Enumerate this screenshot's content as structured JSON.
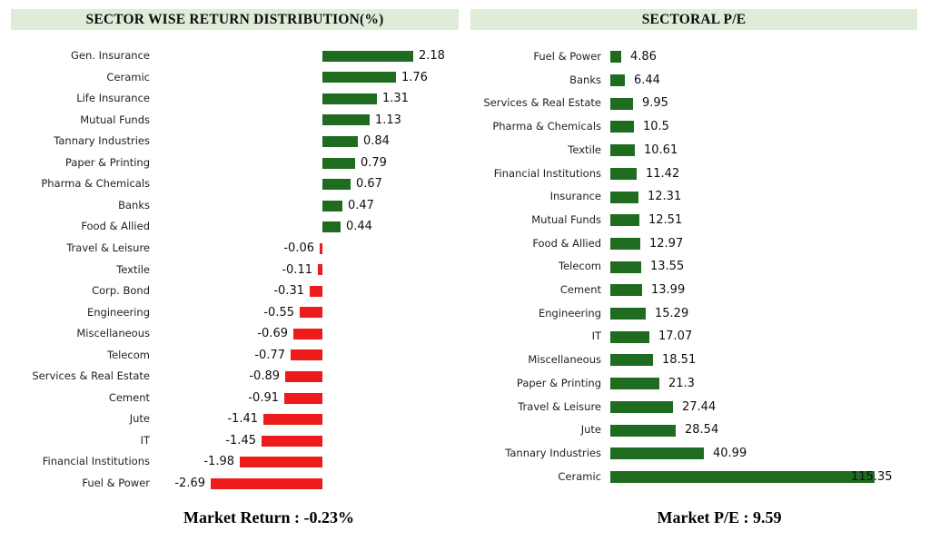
{
  "chart_data": [
    {
      "type": "bar",
      "orientation": "horizontal",
      "title": "SECTOR WISE RETURN DISTRIBUTION(%)",
      "footer": "Market Return : -0.23%",
      "header_bg": "#dfedd8",
      "positive_color": "#1f6b1f",
      "negative_color": "#ee1b1b",
      "value_labels": true,
      "grid": false,
      "legend": "none",
      "xlim": [
        -3,
        2.6
      ],
      "categories": [
        "Gen. Insurance",
        "Ceramic",
        "Life Insurance",
        "Mutual Funds",
        "Tannary Industries",
        "Paper & Printing",
        "Pharma & Chemicals",
        "Banks",
        "Food & Allied",
        "Travel & Leisure",
        "Textile",
        "Corp. Bond",
        "Engineering",
        "Miscellaneous",
        "Telecom",
        "Services & Real Estate",
        "Cement",
        "Jute",
        "IT",
        "Financial Institutions",
        "Fuel & Power"
      ],
      "values": [
        2.18,
        1.76,
        1.31,
        1.13,
        0.84,
        0.79,
        0.67,
        0.47,
        0.44,
        -0.06,
        -0.11,
        -0.31,
        -0.55,
        -0.69,
        -0.77,
        -0.89,
        -0.91,
        -1.41,
        -1.45,
        -1.98,
        -2.69
      ]
    },
    {
      "type": "bar",
      "orientation": "horizontal",
      "title": "SECTORAL P/E",
      "footer": "Market P/E : 9.59",
      "header_bg": "#dfedd8",
      "positive_color": "#1f6b1f",
      "negative_color": "#ee1b1b",
      "value_labels": true,
      "grid": false,
      "legend": "none",
      "xlim": [
        0,
        124
      ],
      "categories": [
        "Fuel & Power",
        "Banks",
        "Services & Real Estate",
        "Pharma & Chemicals",
        "Textile",
        "Financial Institutions",
        "Insurance",
        "Mutual Funds",
        "Food & Allied",
        "Telecom",
        "Cement",
        "Engineering",
        "IT",
        "Miscellaneous",
        "Paper & Printing",
        "Travel & Leisure",
        "Jute",
        "Tannary Industries",
        "Ceramic"
      ],
      "values": [
        4.86,
        6.44,
        9.95,
        10.5,
        10.61,
        11.42,
        12.31,
        12.51,
        12.97,
        13.55,
        13.99,
        15.29,
        17.07,
        18.51,
        21.3,
        27.44,
        28.54,
        40.99,
        115.35
      ]
    }
  ]
}
